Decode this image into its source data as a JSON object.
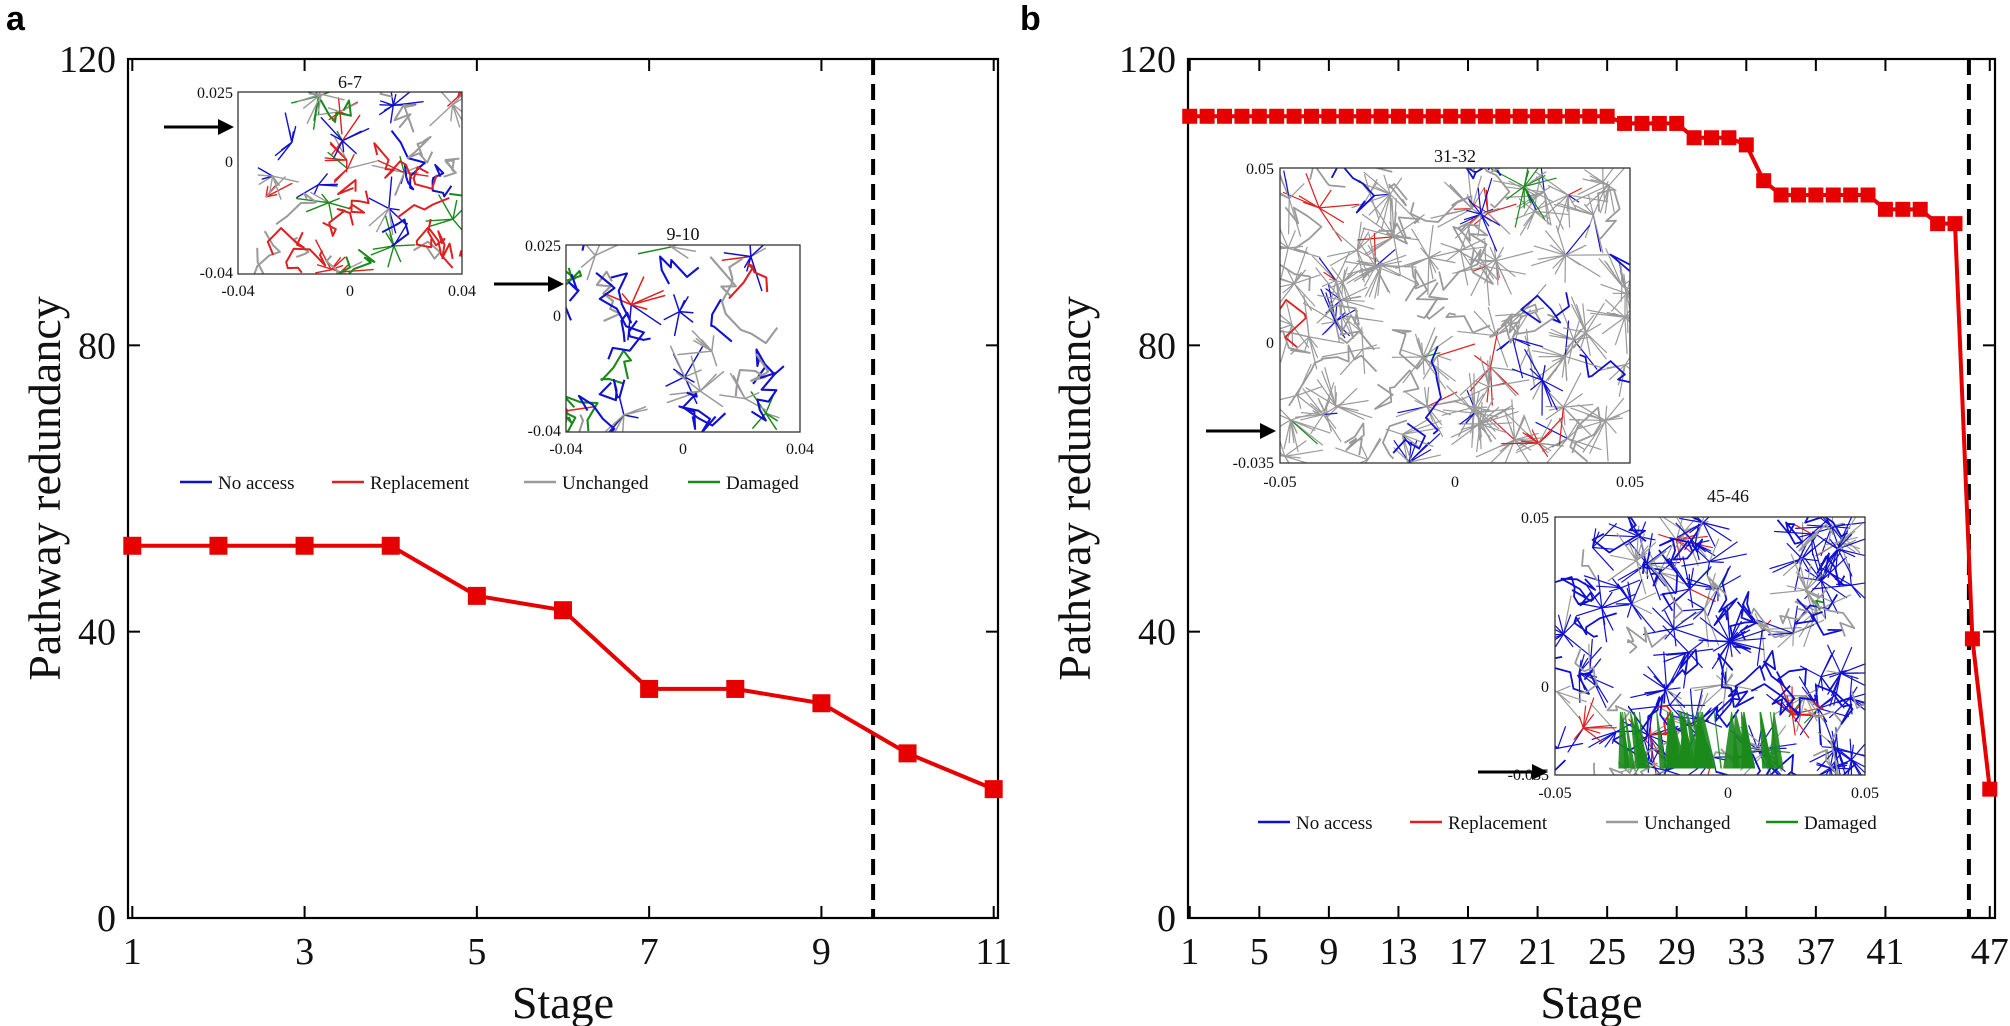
{
  "figure": {
    "panel_letters": [
      "a",
      "b"
    ]
  },
  "colors": {
    "series": "#e60000",
    "no_access": "#1010d0",
    "replacement": "#e02020",
    "unchanged": "#9a9a9a",
    "damaged": "#1a8a1a",
    "axis": "#000000"
  },
  "chart_data": [
    {
      "type": "line",
      "panel": "a",
      "title": "",
      "xlabel": "Stage",
      "ylabel": "Pathway redundancy",
      "x": [
        1,
        2,
        3,
        4,
        5,
        6,
        7,
        8,
        9,
        10,
        11
      ],
      "series": [
        {
          "name": "Pathway redundancy",
          "values": [
            52,
            52,
            52,
            52,
            45,
            43,
            32,
            32,
            30,
            23,
            18
          ]
        }
      ],
      "xlim": [
        0.95,
        11.05
      ],
      "ylim": [
        0,
        120
      ],
      "xticks": [
        "1",
        "3",
        "5",
        "7",
        "9",
        "11"
      ],
      "xtick_values": [
        1,
        3,
        5,
        7,
        9,
        11
      ],
      "yticks": [
        "0",
        "40",
        "80",
        "120"
      ],
      "ytick_values": [
        0,
        40,
        80,
        120
      ],
      "failure_line_x": 9.6,
      "insets": [
        {
          "title": "6-7",
          "xticks": [
            "-0.04",
            "0",
            "0.04"
          ],
          "yticks": [
            "0.025",
            "0",
            "-0.04"
          ]
        },
        {
          "title": "9-10",
          "xticks": [
            "-0.04",
            "0",
            "0.04"
          ],
          "yticks": [
            "0.025",
            "0",
            "-0.04"
          ]
        }
      ],
      "legend": [
        "No access",
        "Replacement",
        "Unchanged",
        "Damaged"
      ]
    },
    {
      "type": "line",
      "panel": "b",
      "title": "",
      "xlabel": "Stage",
      "ylabel": "Pathway redundancy",
      "x": [
        1,
        2,
        3,
        4,
        5,
        6,
        7,
        8,
        9,
        10,
        11,
        12,
        13,
        14,
        15,
        16,
        17,
        18,
        19,
        20,
        21,
        22,
        23,
        24,
        25,
        26,
        27,
        28,
        29,
        30,
        31,
        32,
        33,
        34,
        35,
        36,
        37,
        38,
        39,
        40,
        41,
        42,
        43,
        44,
        45,
        46,
        47
      ],
      "series": [
        {
          "name": "Pathway redundancy",
          "values": [
            112,
            112,
            112,
            112,
            112,
            112,
            112,
            112,
            112,
            112,
            112,
            112,
            112,
            112,
            112,
            112,
            112,
            112,
            112,
            112,
            112,
            112,
            112,
            112,
            112,
            111,
            111,
            111,
            111,
            109,
            109,
            109,
            108,
            103,
            101,
            101,
            101,
            101,
            101,
            101,
            99,
            99,
            99,
            97,
            97,
            39,
            18
          ]
        }
      ],
      "xlim": [
        0.9,
        47.3
      ],
      "ylim": [
        0,
        120
      ],
      "xticks": [
        "1",
        "5",
        "9",
        "13",
        "17",
        "21",
        "25",
        "29",
        "33",
        "37",
        "41",
        "47"
      ],
      "xtick_values": [
        1,
        5,
        9,
        13,
        17,
        21,
        25,
        29,
        33,
        37,
        41,
        47
      ],
      "yticks": [
        "0",
        "40",
        "80",
        "120"
      ],
      "ytick_values": [
        0,
        40,
        80,
        120
      ],
      "failure_line_x": 45.8,
      "insets": [
        {
          "title": "31-32",
          "xticks": [
            "-0.05",
            "0",
            "0.05"
          ],
          "yticks": [
            "0.05",
            "0",
            "-0.035"
          ]
        },
        {
          "title": "45-46",
          "xticks": [
            "-0.05",
            "0",
            "0.05"
          ],
          "yticks": [
            "0.05",
            "0",
            "-0.035"
          ]
        }
      ],
      "legend": [
        "No access",
        "Replacement",
        "Unchanged",
        "Damaged"
      ]
    }
  ]
}
